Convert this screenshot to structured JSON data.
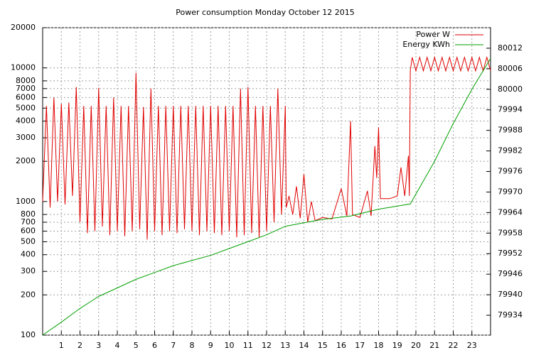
{
  "chart_data": {
    "type": "line",
    "title": "Power consumption Monday October 12 2015",
    "xlim": [
      0,
      24
    ],
    "xticks": [
      1,
      2,
      3,
      4,
      5,
      6,
      7,
      8,
      9,
      10,
      11,
      12,
      13,
      14,
      15,
      16,
      17,
      18,
      19,
      20,
      21,
      22,
      23
    ],
    "ylim": [
      100,
      20000
    ],
    "ylog": true,
    "yticks": [
      100,
      200,
      300,
      400,
      500,
      600,
      700,
      800,
      1000,
      2000,
      3000,
      4000,
      5000,
      6000,
      7000,
      8000,
      10000,
      20000
    ],
    "y2lim": [
      79928.2,
      80018
    ],
    "y2ticks": [
      79934,
      79940,
      79946,
      79952,
      79958,
      79964,
      79970,
      79976,
      79982,
      79988,
      79994,
      80000,
      80006,
      80012
    ],
    "grid": true,
    "legend": "top-right",
    "series": [
      {
        "name": "Power W",
        "color": "#e00000",
        "axis": "y",
        "x": [
          0,
          0.2,
          0.4,
          0.6,
          0.8,
          1,
          1.2,
          1.4,
          1.6,
          1.8,
          2,
          2.2,
          2.4,
          2.6,
          2.8,
          3,
          3.2,
          3.4,
          3.6,
          3.8,
          4,
          4.2,
          4.4,
          4.6,
          4.8,
          5,
          5.2,
          5.4,
          5.6,
          5.8,
          6,
          6.2,
          6.4,
          6.6,
          6.8,
          7,
          7.2,
          7.4,
          7.6,
          7.8,
          8,
          8.2,
          8.4,
          8.6,
          8.8,
          9,
          9.2,
          9.4,
          9.6,
          9.8,
          10,
          10.2,
          10.4,
          10.6,
          10.8,
          11,
          11.2,
          11.4,
          11.6,
          11.8,
          12,
          12.2,
          12.4,
          12.6,
          12.8,
          13,
          13.05,
          13.2,
          13.4,
          13.6,
          13.8,
          14,
          14.2,
          14.4,
          14.6,
          15,
          15.5,
          16,
          16.3,
          16.5,
          16.6,
          17,
          17.4,
          17.6,
          17.8,
          17.9,
          18,
          18.1,
          18.6,
          19,
          19.2,
          19.4,
          19.6,
          19.65,
          19.7,
          19.8,
          20,
          20.2,
          20.4,
          20.6,
          20.8,
          21,
          21.2,
          21.4,
          21.6,
          21.8,
          22,
          22.2,
          22.4,
          22.6,
          22.8,
          23,
          23.2,
          23.4,
          23.6,
          23.8,
          24
        ],
        "values": [
          1000,
          5200,
          900,
          6000,
          1000,
          5400,
          950,
          5500,
          1100,
          7200,
          700,
          5200,
          580,
          5200,
          600,
          7100,
          650,
          5200,
          560,
          6000,
          600,
          5200,
          550,
          5200,
          600,
          9200,
          620,
          5100,
          520,
          7000,
          600,
          5200,
          560,
          5200,
          600,
          5200,
          580,
          5200,
          620,
          5200,
          600,
          5200,
          560,
          5200,
          600,
          5200,
          580,
          5200,
          560,
          5200,
          600,
          5200,
          540,
          7000,
          560,
          7200,
          580,
          5200,
          540,
          5200,
          600,
          5200,
          700,
          7000,
          800,
          5200,
          900,
          1100,
          800,
          1300,
          750,
          1600,
          700,
          1000,
          720,
          760,
          740,
          1250,
          780,
          4000,
          800,
          760,
          1200,
          780,
          2600,
          1500,
          3600,
          1050,
          1050,
          1100,
          1800,
          1100,
          2200,
          1100,
          9500,
          12000,
          9500,
          12000,
          9500,
          12000,
          9500,
          12000,
          9500,
          12000,
          9500,
          12000,
          9500,
          12000,
          9500,
          12000,
          9500,
          12000,
          9500,
          12000,
          9500,
          12000,
          9500
        ]
      },
      {
        "name": "Energy KWh",
        "color": "#00a000",
        "axis": "y2",
        "x": [
          0,
          1,
          2,
          3,
          4,
          5,
          6,
          7,
          8,
          9,
          10,
          11,
          12,
          13,
          14,
          15,
          16.5,
          18,
          19.7,
          21,
          22,
          23,
          24
        ],
        "values": [
          79928.2,
          79932,
          79936,
          79939.5,
          79942,
          79944.5,
          79946.5,
          79948.5,
          79950,
          79951.5,
          79953.5,
          79955.5,
          79957.5,
          79960,
          79961,
          79962,
          79963,
          79965,
          79966.5,
          79979,
          79990,
          80000,
          80009
        ]
      }
    ]
  }
}
